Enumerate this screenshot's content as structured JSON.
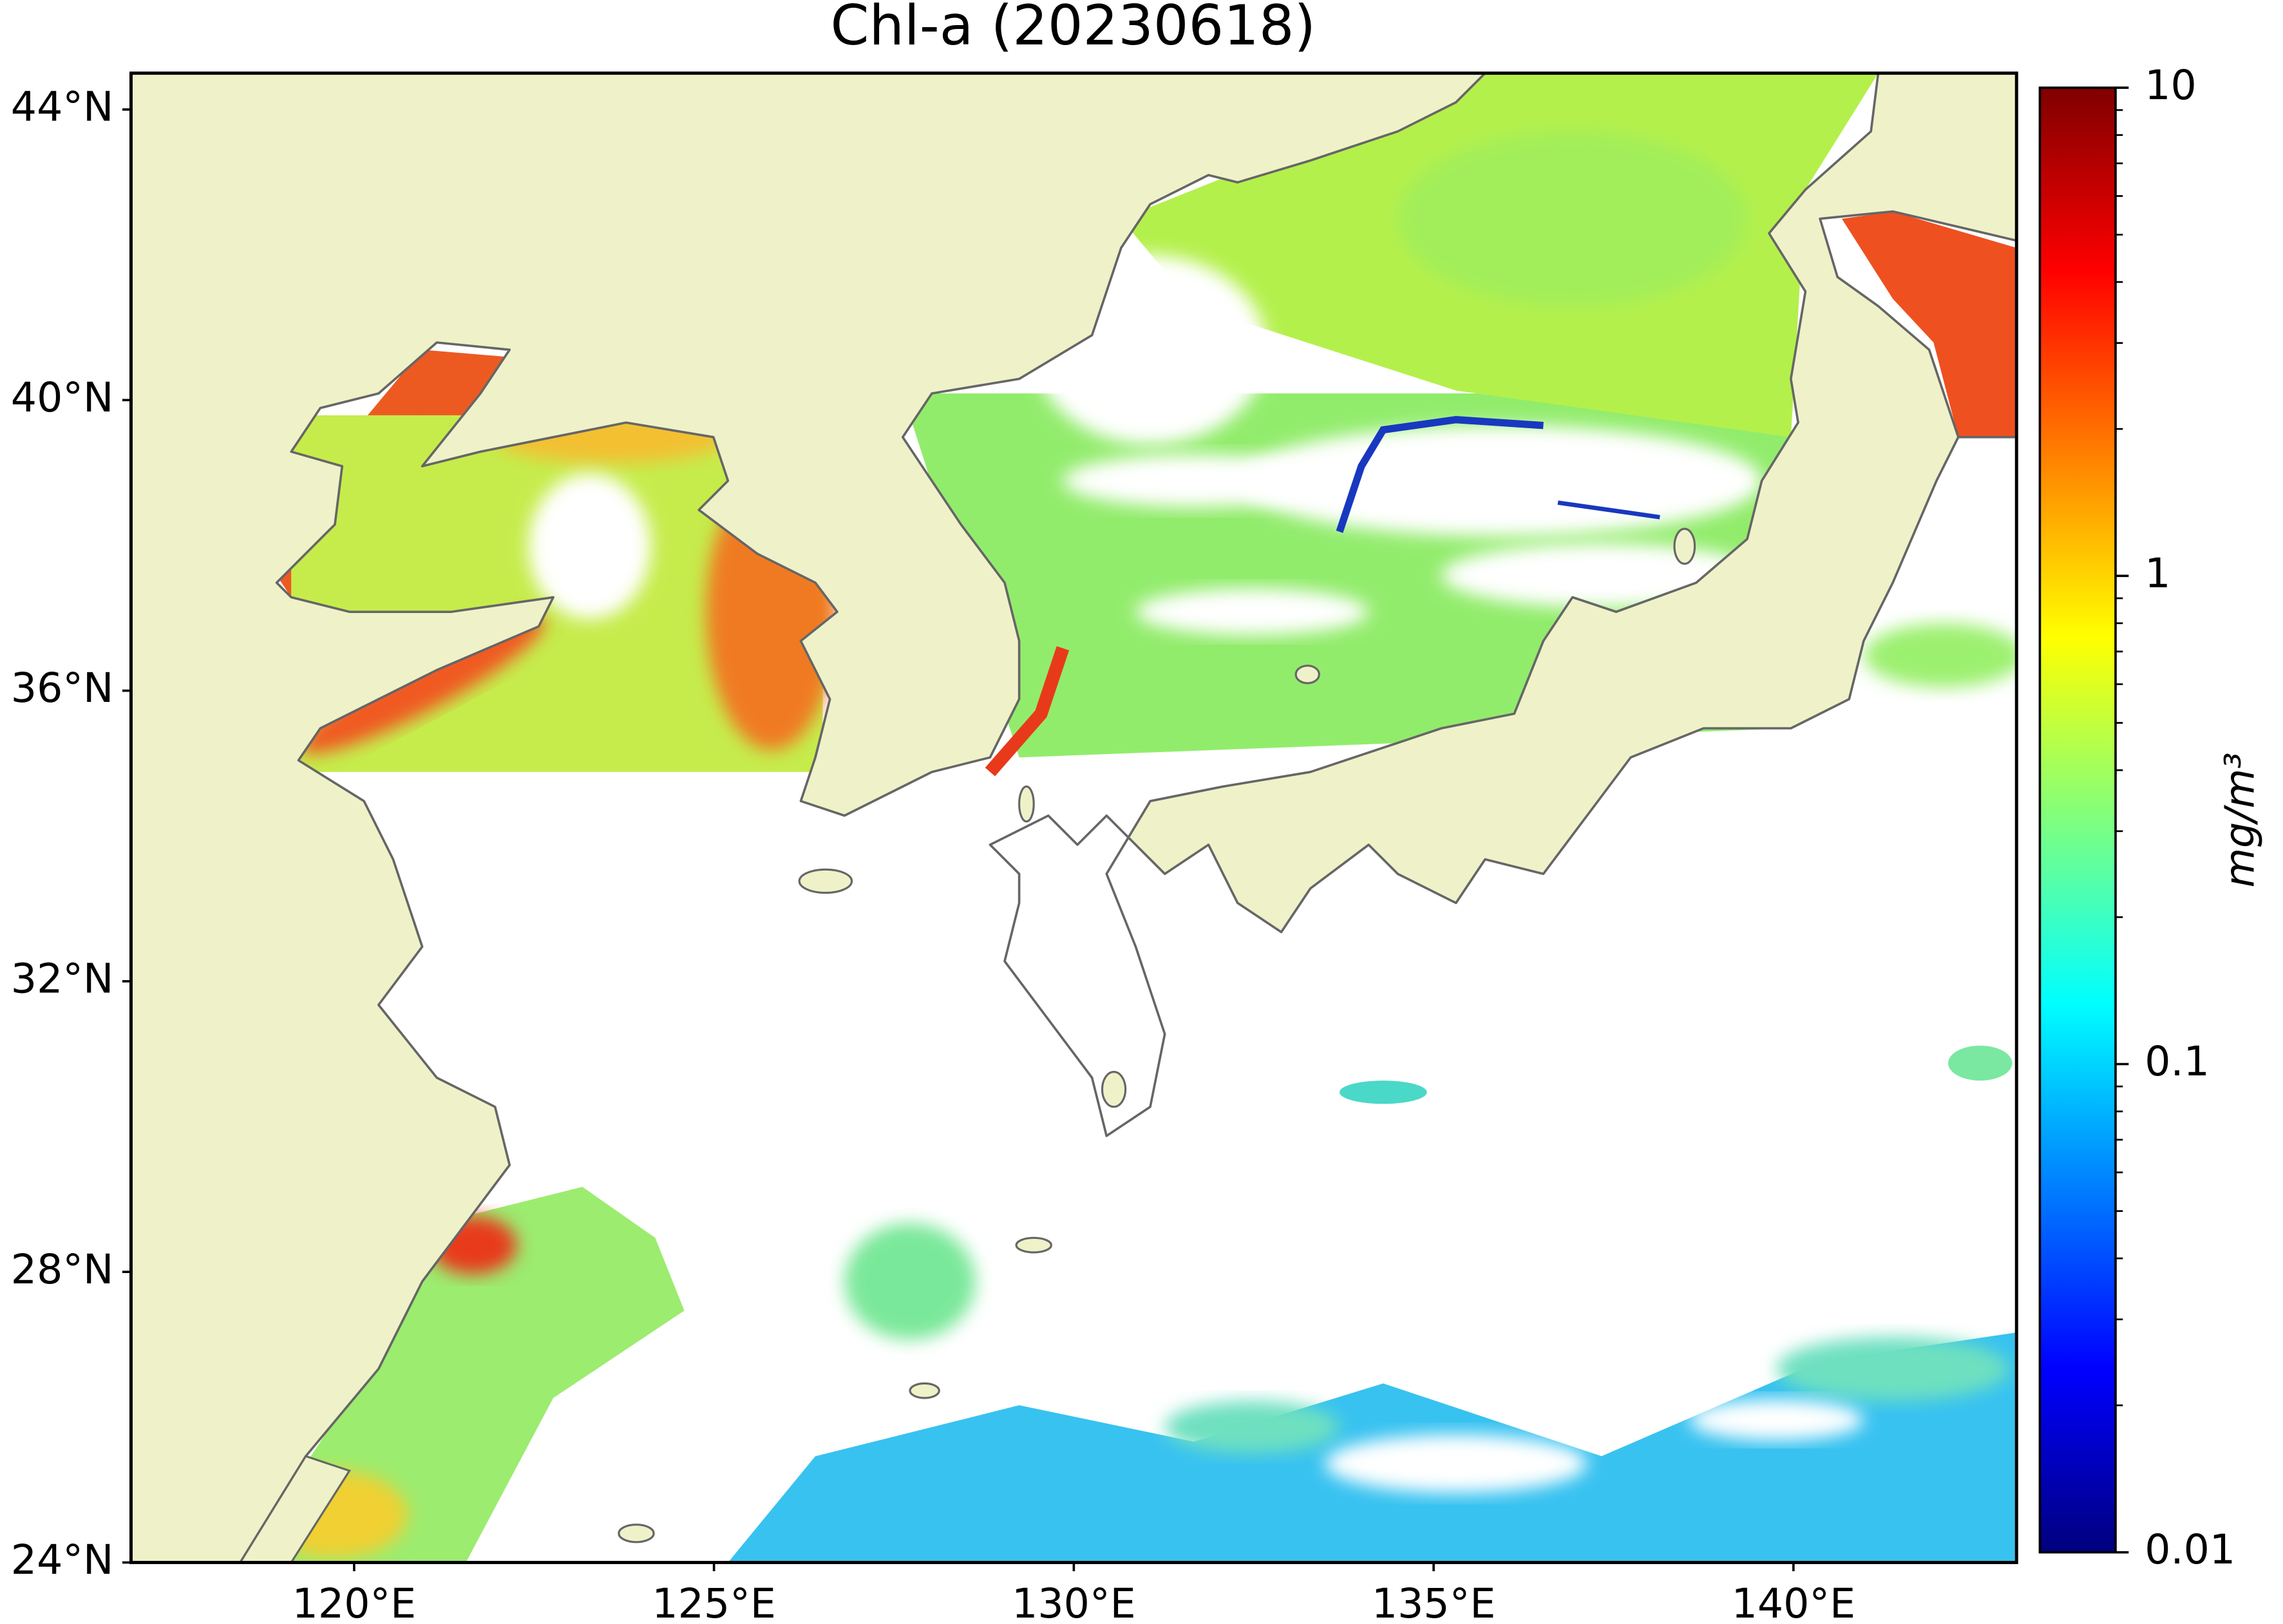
{
  "title": "Chl-a (20230618)",
  "map": {
    "lonlim": [
      116.9,
      143.1
    ],
    "latlim": [
      24,
      44.5
    ],
    "lon_ticks": [
      {
        "value": 120,
        "label": "120°E"
      },
      {
        "value": 125,
        "label": "125°E"
      },
      {
        "value": 130,
        "label": "130°E"
      },
      {
        "value": 135,
        "label": "135°E"
      },
      {
        "value": 140,
        "label": "140°E"
      }
    ],
    "lat_ticks": [
      {
        "value": 24,
        "label": "24°N"
      },
      {
        "value": 28,
        "label": "28°N"
      },
      {
        "value": 32,
        "label": "32°N"
      },
      {
        "value": 36,
        "label": "36°N"
      },
      {
        "value": 40,
        "label": "40°N"
      },
      {
        "value": 44,
        "label": "44°N"
      }
    ]
  },
  "colorbar": {
    "label": "mg/m³",
    "scale": "log",
    "lim": [
      0.01,
      10
    ],
    "ticks": [
      0.01,
      0.1,
      1,
      10
    ],
    "colormap": "jet"
  }
}
